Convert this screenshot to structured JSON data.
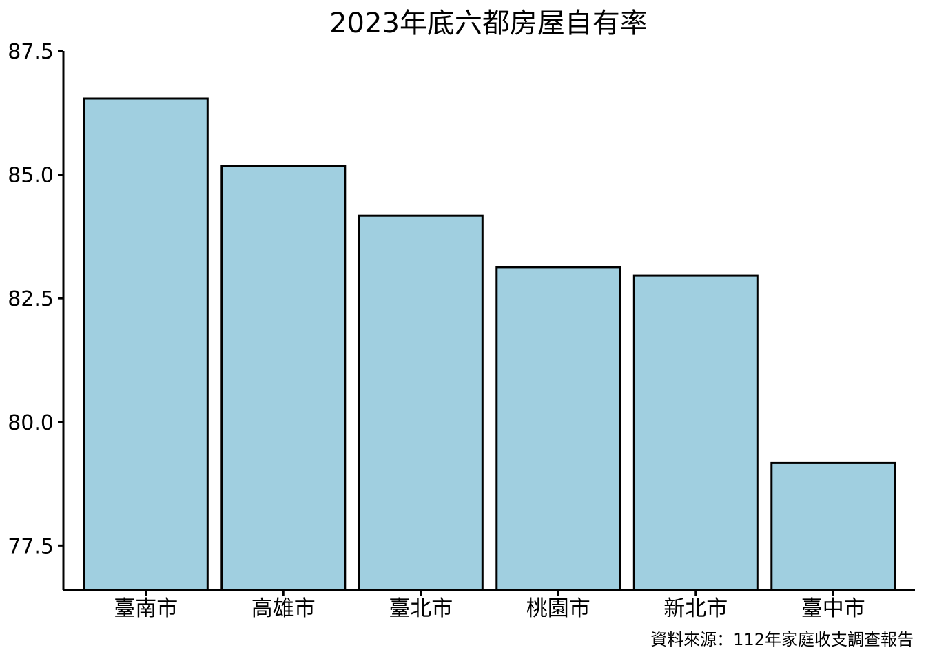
{
  "chart_data": {
    "type": "bar",
    "title": "2023年底六都房屋自有率",
    "categories": [
      "臺南市",
      "高雄市",
      "臺北市",
      "桃園市",
      "新北市",
      "臺中市"
    ],
    "values": [
      86.54,
      85.17,
      84.17,
      83.13,
      82.96,
      79.17
    ],
    "xlabel": "",
    "ylabel": "",
    "ylim": [
      76.6,
      87.5
    ],
    "yticks": [
      77.5,
      80.0,
      82.5,
      85.0,
      87.5
    ],
    "ytick_labels": [
      "77.5",
      "80.0",
      "82.5",
      "85.0",
      "87.5"
    ],
    "caption": "資料來源：112年家庭收支調查報告",
    "grid": false,
    "legend": "none",
    "bar_color": "#a0cfe0",
    "bar_edge_color": "#000000"
  }
}
